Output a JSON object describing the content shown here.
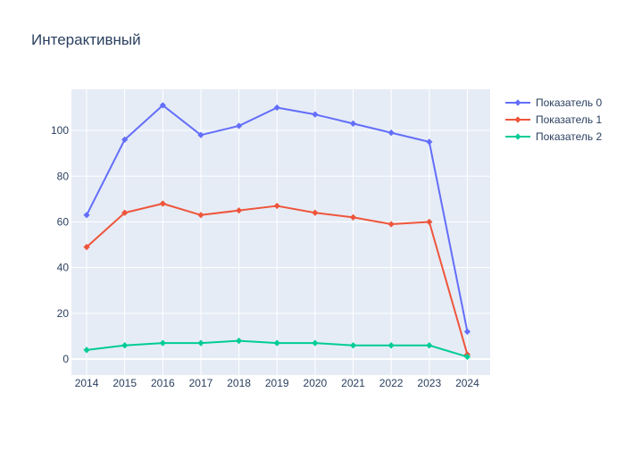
{
  "chart_data": {
    "type": "line",
    "title": "Интерактивный",
    "xlabel": "",
    "ylabel": "",
    "x": [
      2014,
      2015,
      2016,
      2017,
      2018,
      2019,
      2020,
      2021,
      2022,
      2023,
      2024
    ],
    "xticks": [
      "2014",
      "2015",
      "2016",
      "2017",
      "2018",
      "2019",
      "2020",
      "2021",
      "2022",
      "2023",
      "2024"
    ],
    "yticks": [
      "0",
      "20",
      "40",
      "60",
      "80",
      "100"
    ],
    "xlim": [
      2013.6,
      2024.6
    ],
    "ylim": [
      -7,
      118
    ],
    "grid": true,
    "legend_position": "top-right",
    "series": [
      {
        "name": "Показатель 0",
        "color": "#636efa",
        "marker": "diamond",
        "values": [
          63,
          96,
          111,
          98,
          102,
          110,
          107,
          103,
          99,
          95,
          12
        ]
      },
      {
        "name": "Показатель 1",
        "color": "#ef553b",
        "marker": "diamond",
        "values": [
          49,
          64,
          68,
          63,
          65,
          67,
          64,
          62,
          59,
          60,
          2
        ]
      },
      {
        "name": "Показатель 2",
        "color": "#00cc96",
        "marker": "diamond",
        "values": [
          4,
          6,
          7,
          7,
          8,
          7,
          7,
          6,
          6,
          6,
          1
        ]
      }
    ]
  }
}
